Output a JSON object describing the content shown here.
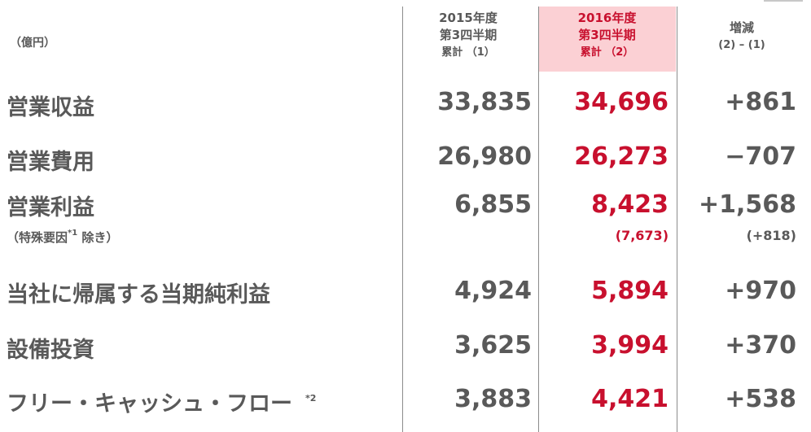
{
  "header": {
    "unit": "（億円）",
    "fy2015_line1": "2015年度",
    "fy2015_line2": "第3四半期",
    "fy2015_line3": "累計 （1）",
    "fy2016_line1": "2016年度",
    "fy2016_line2": "第3四半期",
    "fy2016_line3": "累計 （2）",
    "diff_line1": "増減",
    "diff_line2": "(2) – (1)"
  },
  "rows": [
    {
      "label": "営業収益",
      "fy2015": "33,835",
      "fy2016": "34,696",
      "diff": "+861"
    },
    {
      "label": "営業費用",
      "fy2015": "26,980",
      "fy2016": "26,273",
      "diff": "−707"
    },
    {
      "label": "営業利益",
      "sub_label": "（特殊要因",
      "sub_mark": "*1",
      "sub_suffix": " 除き）",
      "fy2015": "6,855",
      "fy2016": "8,423",
      "diff": "+1,568",
      "fy2016_sub": "(7,673)",
      "diff_sub": "(+818)"
    },
    {
      "label": "当社に帰属する当期純利益",
      "fy2015": "4,924",
      "fy2016": "5,894",
      "diff": "+970"
    },
    {
      "label": "設備投資",
      "fy2015": "3,625",
      "fy2016": "3,994",
      "diff": "+370"
    },
    {
      "label": "フリー・キャッシュ・フロー",
      "mark": "*2",
      "fy2015": "3,883",
      "fy2016": "4,421",
      "diff": "+538"
    }
  ]
}
